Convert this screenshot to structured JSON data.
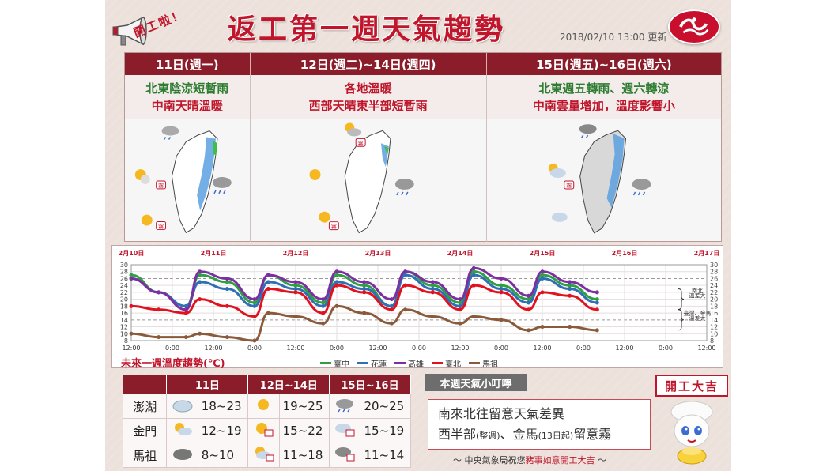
{
  "header": {
    "title": "返工第一週天氣趨勢",
    "timestamp": "2018/02/10 13:00 更新",
    "kaigong_text": [
      "開",
      "工",
      "啦",
      "！"
    ]
  },
  "periods": [
    {
      "label": "11日(週一)",
      "line1": "北東陰涼短暫雨",
      "line2": "中南天晴溫暖"
    },
    {
      "label": "12日(週二)~14日(週四)",
      "line1": "各地溫暖",
      "line2": "西部天晴東半部短暫雨"
    },
    {
      "label": "15日(週五)~16日(週六)",
      "line1": "北東週五轉雨、週六轉涼",
      "line2": "中南雲量增加，溫度影響小"
    }
  ],
  "map_badges": {
    "fog": "霧"
  },
  "chart_data": {
    "type": "line",
    "title": "未來一週溫度趨勢(℃)",
    "date_labels": [
      "2月10日",
      "2月11日",
      "2月12日",
      "2月13日",
      "2月14日",
      "2月15日",
      "2月16日",
      "2月17日"
    ],
    "time_labels": [
      "12:00",
      "0:00",
      "12:00",
      "0:00",
      "12:00",
      "0:00",
      "12:00",
      "0:00",
      "12:00",
      "0:00",
      "12:00",
      "0:00",
      "12:00",
      "0:00",
      "12:00"
    ],
    "ylim": [
      8,
      30
    ],
    "yticks": [
      8,
      10,
      12,
      14,
      16,
      18,
      20,
      22,
      24,
      26,
      28,
      30
    ],
    "x_hours": [
      0,
      6,
      12,
      18,
      24,
      30,
      36,
      42,
      48,
      54,
      60,
      66,
      72,
      78,
      84
    ],
    "grid": true,
    "annotations": [
      "南北\n溫差大",
      "臺灣、金馬\n溫差大"
    ],
    "series": [
      {
        "name": "臺中",
        "color": "#2ea043",
        "values": [
          27,
          22,
          18,
          27,
          25,
          19,
          27,
          24,
          19,
          27,
          24,
          18,
          28,
          24,
          19,
          28,
          24,
          20,
          27,
          24,
          20
        ]
      },
      {
        "name": "花蓮",
        "color": "#2f6fb5",
        "values": [
          26,
          22,
          18,
          25,
          23,
          18,
          25,
          23,
          18,
          25,
          23,
          18,
          27,
          23,
          18,
          27,
          23,
          19,
          26,
          23,
          19
        ]
      },
      {
        "name": "高雄",
        "color": "#7b2fa0",
        "values": [
          26,
          22,
          17,
          28,
          26,
          20,
          27,
          25,
          20,
          28,
          25,
          20,
          28,
          25,
          20,
          29,
          26,
          21,
          28,
          25,
          22
        ]
      },
      {
        "name": "臺北",
        "color": "#e0121e",
        "values": [
          18,
          17,
          16,
          20,
          18,
          15,
          23,
          22,
          16,
          24,
          22,
          17,
          24,
          22,
          17,
          24,
          22,
          17,
          22,
          21,
          17
        ]
      },
      {
        "name": "馬祖",
        "color": "#8a5a3a",
        "values": [
          10,
          9,
          9,
          10,
          9,
          8,
          16,
          15,
          13,
          18,
          16,
          13,
          17,
          15,
          13,
          15,
          14,
          11,
          12,
          12,
          11
        ]
      }
    ],
    "x_points": [
      0,
      4,
      8,
      10,
      14,
      18,
      20,
      24,
      28,
      30,
      34,
      38,
      40,
      44,
      48,
      50,
      54,
      58,
      60,
      64,
      68
    ]
  },
  "forecast_table": {
    "headers": [
      "",
      "11日",
      "12日~14日",
      "15日~16日"
    ],
    "rows": [
      {
        "place": "澎湖",
        "r1": "18~23",
        "r2": "19~25",
        "r3": "20~25"
      },
      {
        "place": "金門",
        "r1": "12~19",
        "r2": "15~22",
        "r3": "15~19"
      },
      {
        "place": "馬祖",
        "r1": "8~10",
        "r2": "11~18",
        "r3": "11~14"
      }
    ]
  },
  "tips": {
    "badge": "本週天氣小叮嚀",
    "line1": "南來北往留意天氣差異",
    "line2a": "西半部",
    "line2a_small": "(整週)",
    "line2b": "、金馬",
    "line2b_small": "(13日起)",
    "line2c": "留意霧"
  },
  "footer": {
    "prefix": "～ 中央氣象局祝您",
    "highlight": "豬事如意開工大吉",
    "suffix": " ～"
  },
  "luck_badge": "開工大吉"
}
